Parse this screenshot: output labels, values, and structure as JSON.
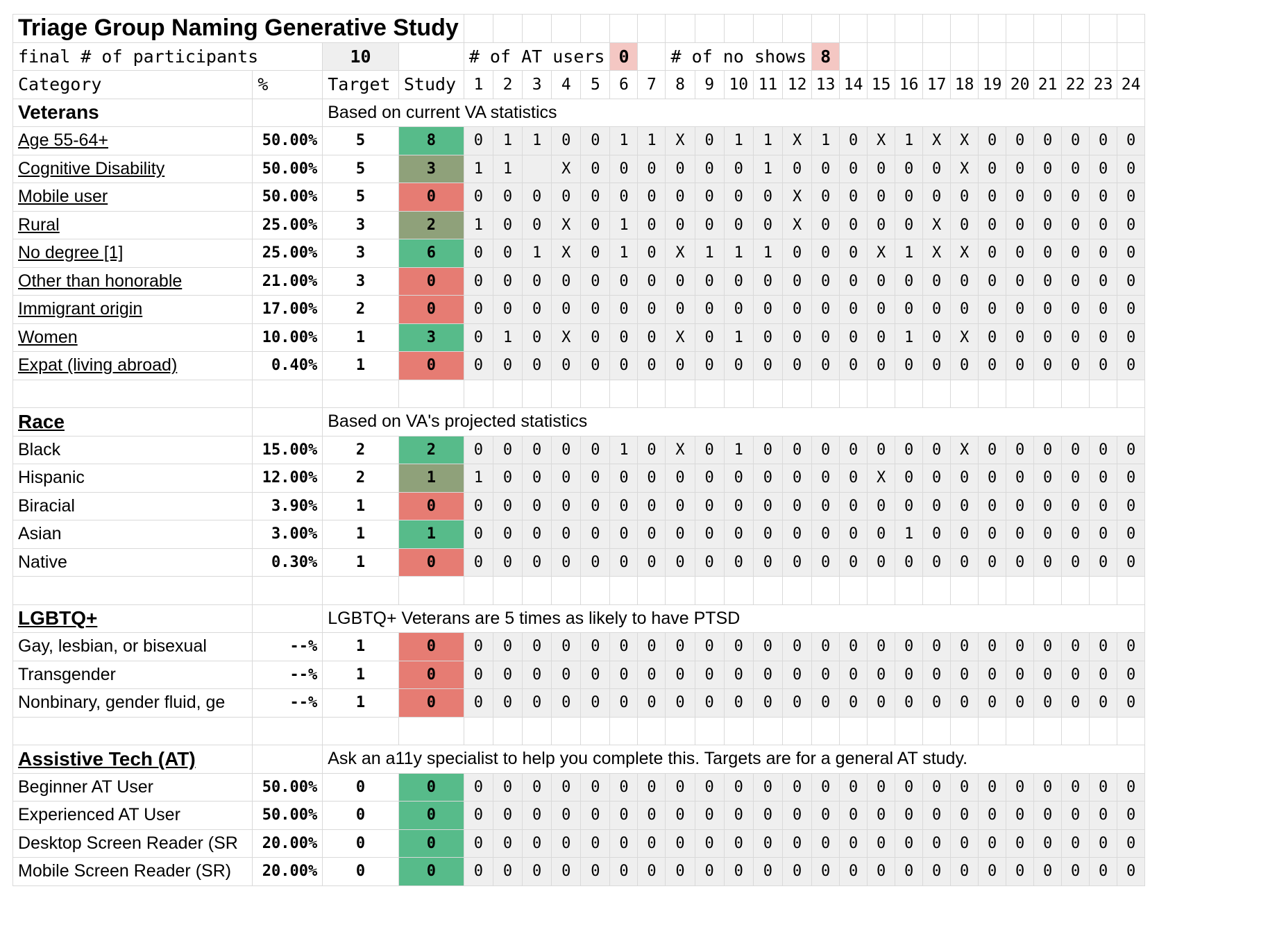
{
  "title": "Triage Group Naming Generative Study",
  "summary": {
    "final_label": "final # of participants",
    "final_value": "10",
    "at_label": "# of AT users",
    "at_value": "0",
    "noshow_label": "# of no shows",
    "noshow_value": "8"
  },
  "headers": {
    "category": "Category",
    "percent": "%",
    "target": "Target",
    "study": "Study",
    "participants": [
      "1",
      "2",
      "3",
      "4",
      "5",
      "6",
      "7",
      "8",
      "9",
      "10",
      "11",
      "12",
      "13",
      "14",
      "15",
      "16",
      "17",
      "18",
      "19",
      "20",
      "21",
      "22",
      "23",
      "24"
    ]
  },
  "colors": {
    "green": "#57bb8a",
    "olive": "#8fa17a",
    "red": "#e67c73",
    "pink": "#f4c7c3",
    "link": "#1155cc"
  },
  "sections": [
    {
      "title": "Veterans",
      "title_is_link": false,
      "note": "Based on current VA statistics",
      "rows": [
        {
          "label": "Age 55-64+",
          "link": true,
          "pct": "50.00%",
          "target": "5",
          "study": "8",
          "status": "green",
          "cells": [
            "0",
            "1",
            "1",
            "0",
            "0",
            "1",
            "1",
            "X",
            "0",
            "1",
            "1",
            "X",
            "1",
            "0",
            "X",
            "1",
            "X",
            "X",
            "0",
            "0",
            "0",
            "0",
            "0",
            "0"
          ]
        },
        {
          "label": "Cognitive Disability",
          "link": true,
          "pct": "50.00%",
          "target": "5",
          "study": "3",
          "status": "olive",
          "cells": [
            "1",
            "1",
            "",
            "X",
            "0",
            "0",
            "0",
            "0",
            "0",
            "0",
            "1",
            "0",
            "0",
            "0",
            "0",
            "0",
            "0",
            "X",
            "0",
            "0",
            "0",
            "0",
            "0",
            "0"
          ]
        },
        {
          "label": "Mobile user",
          "link": true,
          "pct": "50.00%",
          "target": "5",
          "study": "0",
          "status": "red",
          "cells": [
            "0",
            "0",
            "0",
            "0",
            "0",
            "0",
            "0",
            "0",
            "0",
            "0",
            "0",
            "X",
            "0",
            "0",
            "0",
            "0",
            "0",
            "0",
            "0",
            "0",
            "0",
            "0",
            "0",
            "0"
          ]
        },
        {
          "label": "Rural",
          "link": true,
          "pct": "25.00%",
          "target": "3",
          "study": "2",
          "status": "olive",
          "cells": [
            "1",
            "0",
            "0",
            "X",
            "0",
            "1",
            "0",
            "0",
            "0",
            "0",
            "0",
            "X",
            "0",
            "0",
            "0",
            "0",
            "X",
            "0",
            "0",
            "0",
            "0",
            "0",
            "0",
            "0"
          ]
        },
        {
          "label": "No degree [1]",
          "link": true,
          "pct": "25.00%",
          "target": "3",
          "study": "6",
          "status": "green",
          "cells": [
            "0",
            "0",
            "1",
            "X",
            "0",
            "1",
            "0",
            "X",
            "1",
            "1",
            "1",
            "0",
            "0",
            "0",
            "X",
            "1",
            "X",
            "X",
            "0",
            "0",
            "0",
            "0",
            "0",
            "0"
          ]
        },
        {
          "label": "Other than honorable",
          "link": true,
          "pct": "21.00%",
          "target": "3",
          "study": "0",
          "status": "red",
          "cells": [
            "0",
            "0",
            "0",
            "0",
            "0",
            "0",
            "0",
            "0",
            "0",
            "0",
            "0",
            "0",
            "0",
            "0",
            "0",
            "0",
            "0",
            "0",
            "0",
            "0",
            "0",
            "0",
            "0",
            "0"
          ]
        },
        {
          "label": "Immigrant origin",
          "link": true,
          "pct": "17.00%",
          "target": "2",
          "study": "0",
          "status": "red",
          "cells": [
            "0",
            "0",
            "0",
            "0",
            "0",
            "0",
            "0",
            "0",
            "0",
            "0",
            "0",
            "0",
            "0",
            "0",
            "0",
            "0",
            "0",
            "0",
            "0",
            "0",
            "0",
            "0",
            "0",
            "0"
          ]
        },
        {
          "label": "Women",
          "link": true,
          "pct": "10.00%",
          "target": "1",
          "study": "3",
          "status": "green",
          "cells": [
            "0",
            "1",
            "0",
            "X",
            "0",
            "0",
            "0",
            "X",
            "0",
            "1",
            "0",
            "0",
            "0",
            "0",
            "0",
            "1",
            "0",
            "X",
            "0",
            "0",
            "0",
            "0",
            "0",
            "0"
          ]
        },
        {
          "label": "Expat (living abroad)",
          "link": true,
          "pct": "0.40%",
          "target": "1",
          "study": "0",
          "status": "red",
          "cells": [
            "0",
            "0",
            "0",
            "0",
            "0",
            "0",
            "0",
            "0",
            "0",
            "0",
            "0",
            "0",
            "0",
            "0",
            "0",
            "0",
            "0",
            "0",
            "0",
            "0",
            "0",
            "0",
            "0",
            "0"
          ]
        }
      ]
    },
    {
      "title": "Race",
      "title_is_link": true,
      "note": "Based on VA's projected statistics",
      "rows": [
        {
          "label": "Black",
          "link": false,
          "pct": "15.00%",
          "target": "2",
          "study": "2",
          "status": "green",
          "cells": [
            "0",
            "0",
            "0",
            "0",
            "0",
            "1",
            "0",
            "X",
            "0",
            "1",
            "0",
            "0",
            "0",
            "0",
            "0",
            "0",
            "0",
            "X",
            "0",
            "0",
            "0",
            "0",
            "0",
            "0"
          ]
        },
        {
          "label": "Hispanic",
          "link": false,
          "pct": "12.00%",
          "target": "2",
          "study": "1",
          "status": "olive",
          "cells": [
            "1",
            "0",
            "0",
            "0",
            "0",
            "0",
            "0",
            "0",
            "0",
            "0",
            "0",
            "0",
            "0",
            "0",
            "X",
            "0",
            "0",
            "0",
            "0",
            "0",
            "0",
            "0",
            "0",
            "0"
          ]
        },
        {
          "label": "Biracial",
          "link": false,
          "pct": "3.90%",
          "target": "1",
          "study": "0",
          "status": "red",
          "cells": [
            "0",
            "0",
            "0",
            "0",
            "0",
            "0",
            "0",
            "0",
            "0",
            "0",
            "0",
            "0",
            "0",
            "0",
            "0",
            "0",
            "0",
            "0",
            "0",
            "0",
            "0",
            "0",
            "0",
            "0"
          ]
        },
        {
          "label": "Asian",
          "link": false,
          "pct": "3.00%",
          "target": "1",
          "study": "1",
          "status": "green",
          "cells": [
            "0",
            "0",
            "0",
            "0",
            "0",
            "0",
            "0",
            "0",
            "0",
            "0",
            "0",
            "0",
            "0",
            "0",
            "0",
            "1",
            "0",
            "0",
            "0",
            "0",
            "0",
            "0",
            "0",
            "0"
          ]
        },
        {
          "label": "Native",
          "link": false,
          "pct": "0.30%",
          "target": "1",
          "study": "0",
          "status": "red",
          "cells": [
            "0",
            "0",
            "0",
            "0",
            "0",
            "0",
            "0",
            "0",
            "0",
            "0",
            "0",
            "0",
            "0",
            "0",
            "0",
            "0",
            "0",
            "0",
            "0",
            "0",
            "0",
            "0",
            "0",
            "0"
          ]
        }
      ]
    },
    {
      "title": "LGBTQ+",
      "title_is_link": true,
      "note": "LGBTQ+ Veterans are 5 times as likely to have PTSD",
      "rows": [
        {
          "label": "Gay, lesbian, or bisexual",
          "link": false,
          "pct": "--%",
          "target": "1",
          "study": "0",
          "status": "red",
          "cells": [
            "0",
            "0",
            "0",
            "0",
            "0",
            "0",
            "0",
            "0",
            "0",
            "0",
            "0",
            "0",
            "0",
            "0",
            "0",
            "0",
            "0",
            "0",
            "0",
            "0",
            "0",
            "0",
            "0",
            "0"
          ]
        },
        {
          "label": "Transgender",
          "link": false,
          "pct": "--%",
          "target": "1",
          "study": "0",
          "status": "red",
          "cells": [
            "0",
            "0",
            "0",
            "0",
            "0",
            "0",
            "0",
            "0",
            "0",
            "0",
            "0",
            "0",
            "0",
            "0",
            "0",
            "0",
            "0",
            "0",
            "0",
            "0",
            "0",
            "0",
            "0",
            "0"
          ]
        },
        {
          "label": "Nonbinary, gender fluid, ge",
          "link": false,
          "pct": "--%",
          "target": "1",
          "study": "0",
          "status": "red",
          "cells": [
            "0",
            "0",
            "0",
            "0",
            "0",
            "0",
            "0",
            "0",
            "0",
            "0",
            "0",
            "0",
            "0",
            "0",
            "0",
            "0",
            "0",
            "0",
            "0",
            "0",
            "0",
            "0",
            "0",
            "0"
          ]
        }
      ]
    },
    {
      "title": "Assistive Tech (AT)",
      "title_is_link": true,
      "note": "Ask an a11y specialist to help you complete this. Targets are for a general AT study.",
      "rows": [
        {
          "label": "Beginner AT User",
          "link": false,
          "pct": "50.00%",
          "target": "0",
          "study": "0",
          "status": "green",
          "cells": [
            "0",
            "0",
            "0",
            "0",
            "0",
            "0",
            "0",
            "0",
            "0",
            "0",
            "0",
            "0",
            "0",
            "0",
            "0",
            "0",
            "0",
            "0",
            "0",
            "0",
            "0",
            "0",
            "0",
            "0"
          ]
        },
        {
          "label": "Experienced AT User",
          "link": false,
          "pct": "50.00%",
          "target": "0",
          "study": "0",
          "status": "green",
          "cells": [
            "0",
            "0",
            "0",
            "0",
            "0",
            "0",
            "0",
            "0",
            "0",
            "0",
            "0",
            "0",
            "0",
            "0",
            "0",
            "0",
            "0",
            "0",
            "0",
            "0",
            "0",
            "0",
            "0",
            "0"
          ]
        },
        {
          "label": "Desktop Screen Reader (SR",
          "link": false,
          "pct": "20.00%",
          "target": "0",
          "study": "0",
          "status": "green",
          "cells": [
            "0",
            "0",
            "0",
            "0",
            "0",
            "0",
            "0",
            "0",
            "0",
            "0",
            "0",
            "0",
            "0",
            "0",
            "0",
            "0",
            "0",
            "0",
            "0",
            "0",
            "0",
            "0",
            "0",
            "0"
          ]
        },
        {
          "label": "Mobile Screen Reader (SR)",
          "link": false,
          "pct": "20.00%",
          "target": "0",
          "study": "0",
          "status": "green",
          "cells": [
            "0",
            "0",
            "0",
            "0",
            "0",
            "0",
            "0",
            "0",
            "0",
            "0",
            "0",
            "0",
            "0",
            "0",
            "0",
            "0",
            "0",
            "0",
            "0",
            "0",
            "0",
            "0",
            "0",
            "0"
          ]
        }
      ]
    }
  ]
}
